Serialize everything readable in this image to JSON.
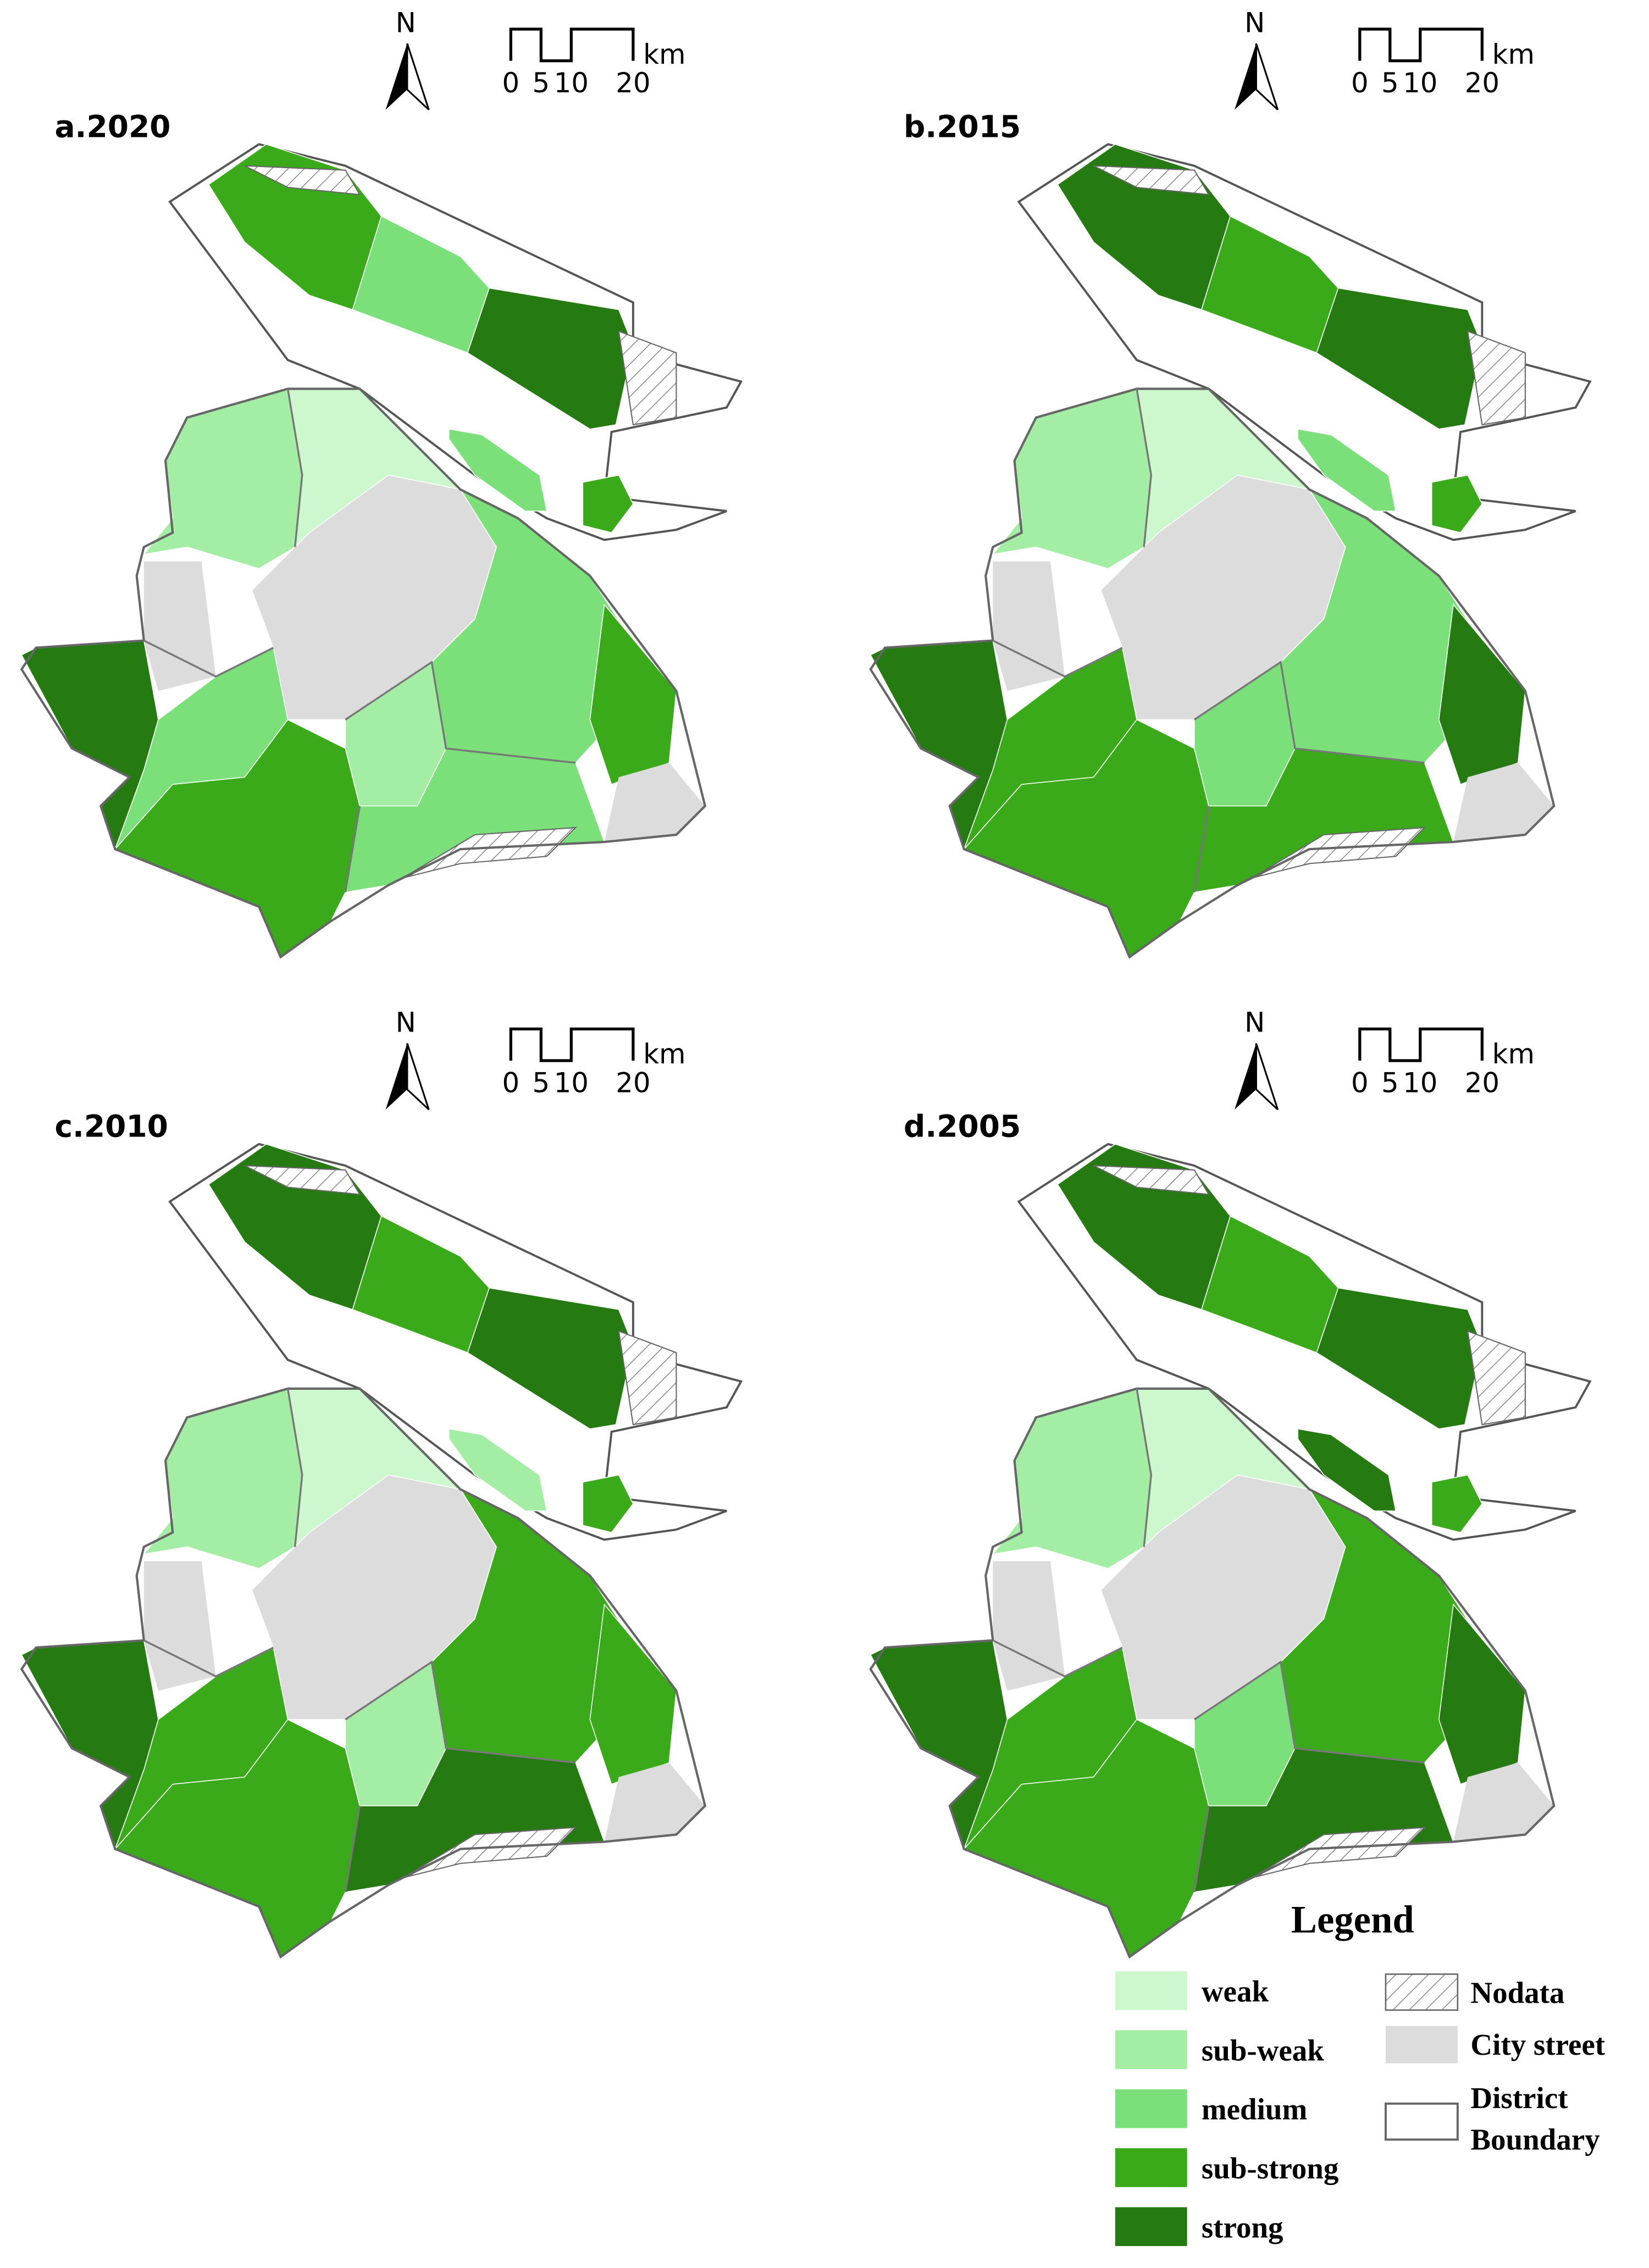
{
  "north": "N",
  "scale_bar": {
    "labels": [
      "0",
      "5",
      "10",
      "20"
    ],
    "unit": "km"
  },
  "panels": [
    {
      "label": "a.2020"
    },
    {
      "label": "b.2015"
    },
    {
      "label": "c.2010"
    },
    {
      "label": "d.2005"
    }
  ],
  "legend": {
    "title": "Legend",
    "classes": [
      {
        "label": "weak",
        "color": "#cdf7cd"
      },
      {
        "label": "sub-weak",
        "color": "#a4eda4"
      },
      {
        "label": "medium",
        "color": "#7ce07a"
      },
      {
        "label": "sub-strong",
        "color": "#3aa91a"
      },
      {
        "label": "strong",
        "color": "#267a12"
      }
    ],
    "others": [
      {
        "label": "Nodata"
      },
      {
        "label": "City street",
        "color": "#dcdcdc"
      },
      {
        "label_lines": [
          "District",
          "Boundary"
        ]
      }
    ]
  }
}
